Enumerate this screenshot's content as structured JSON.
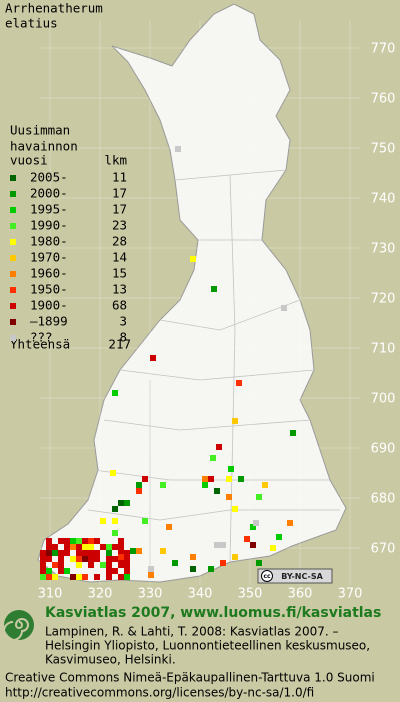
{
  "title": [
    "Arrhenatherum",
    "elatius"
  ],
  "legend": {
    "heading": [
      "Uusimman",
      "havainnon",
      "vuosi"
    ],
    "count_heading": "lkm",
    "rows": [
      {
        "label": "2005-",
        "count": 11,
        "color": "#006400"
      },
      {
        "label": "2000-",
        "count": 17,
        "color": "#009a00"
      },
      {
        "label": "1995-",
        "count": 17,
        "color": "#00cc00"
      },
      {
        "label": "1990-",
        "count": 23,
        "color": "#44ee22"
      },
      {
        "label": "1980-",
        "count": 28,
        "color": "#ffff00"
      },
      {
        "label": "1970-",
        "count": 14,
        "color": "#ffc800"
      },
      {
        "label": "1960-",
        "count": 15,
        "color": "#ff8000"
      },
      {
        "label": "1950-",
        "count": 13,
        "color": "#ff3000"
      },
      {
        "label": "1900-",
        "count": 68,
        "color": "#cc0000"
      },
      {
        "label": "–1899",
        "count": 3,
        "color": "#800000"
      },
      {
        "label": "???",
        "count": 8,
        "color": "#c8c8c8"
      }
    ],
    "total_label": "Yhteensä",
    "total": 217
  },
  "grid": {
    "northing_ticks": [
      770,
      760,
      750,
      740,
      730,
      720,
      710,
      700,
      690,
      680,
      670
    ],
    "easting_ticks": [
      310,
      320,
      330,
      340,
      350,
      360,
      370
    ]
  },
  "cc_badge": {
    "icon": "cc",
    "text": "BY-NC-SA"
  },
  "footer": {
    "heading": "Kasviatlas 2007, www.luomus.fi/kasviatlas",
    "citation": [
      "Lampinen, R. & Lahti, T. 2008: Kasviatlas 2007. –",
      "Helsingin Yliopisto, Luonnontieteellinen keskusmuseo,",
      "Kasvimuseo, Helsinki."
    ],
    "license": [
      "Creative Commons Nimeä-Epäkaupallinen-Tarttuva 1.0 Suomi",
      "http://creativecommons.org/licenses/by-nc-sa/1.0/fi"
    ]
  }
}
